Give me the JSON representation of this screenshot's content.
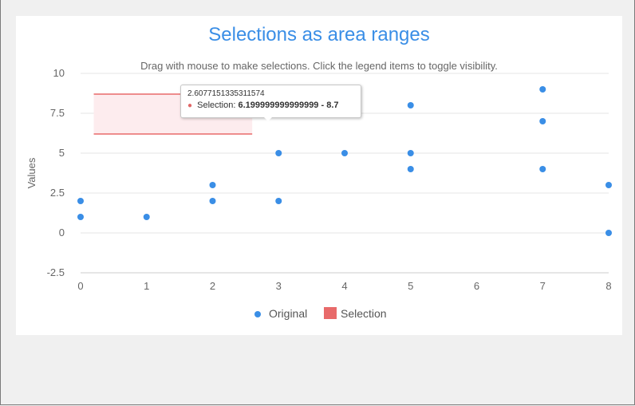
{
  "chart_data": {
    "type": "scatter",
    "title": "Selections as area ranges",
    "subtitle": "Drag with mouse to make selections. Click the legend items to toggle visibility.",
    "xlabel": "",
    "ylabel": "Values",
    "xlim": [
      0,
      8
    ],
    "ylim": [
      -2.5,
      10
    ],
    "xticks": [
      "0",
      "1",
      "2",
      "3",
      "4",
      "5",
      "6",
      "7",
      "8"
    ],
    "yticks": [
      "-2.5",
      "0",
      "2.5",
      "5",
      "7.5",
      "10"
    ],
    "grid": true,
    "legend_position": "bottom",
    "series": [
      {
        "name": "Original",
        "type": "scatter",
        "color": "#3a8ee6",
        "points": [
          [
            0,
            2
          ],
          [
            0,
            1
          ],
          [
            1,
            1
          ],
          [
            2,
            3
          ],
          [
            2,
            2
          ],
          [
            3,
            5
          ],
          [
            3,
            2
          ],
          [
            4,
            9
          ],
          [
            4,
            5
          ],
          [
            5,
            8
          ],
          [
            5,
            5
          ],
          [
            5,
            4
          ],
          [
            7,
            9
          ],
          [
            7,
            7
          ],
          [
            7,
            4
          ],
          [
            8,
            3
          ],
          [
            8,
            0
          ]
        ]
      },
      {
        "name": "Selection",
        "type": "arearange",
        "color": "#e86a6a",
        "fill": "#fdecee",
        "x": [
          0.2,
          2.6
        ],
        "low": 6.2,
        "high": 8.7
      }
    ]
  },
  "tooltip": {
    "header": "2.6077151335311574",
    "series_label": "Selection:",
    "value": "6.199999999999999 - 8.7"
  }
}
